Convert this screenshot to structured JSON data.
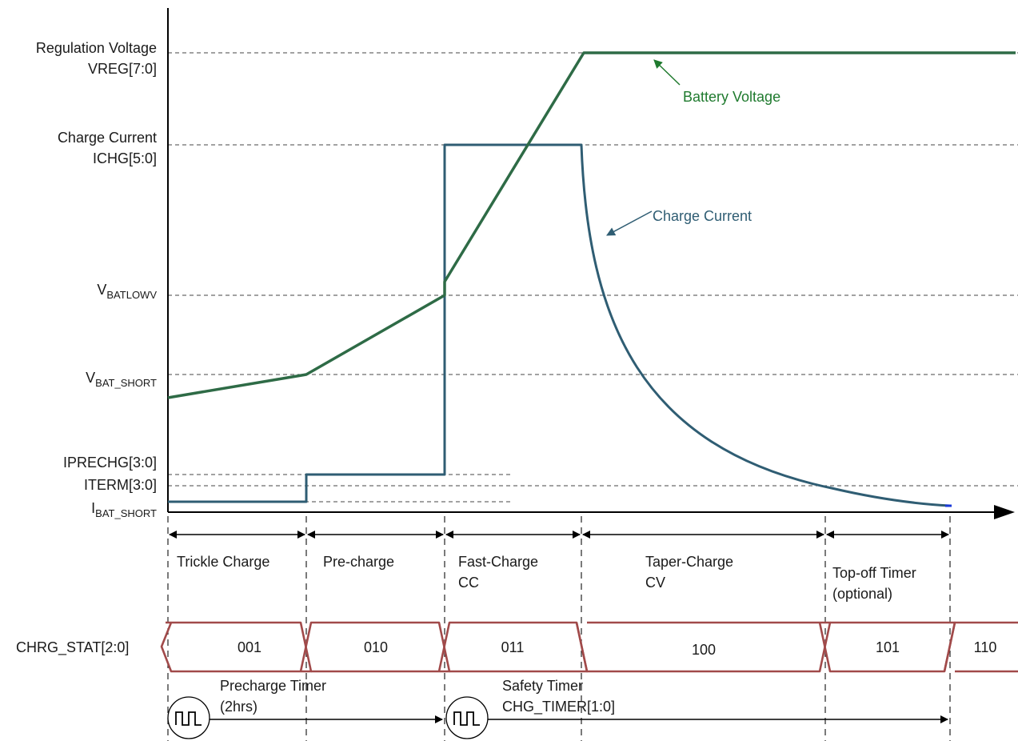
{
  "colors": {
    "voltage": "#2e6b46",
    "current": "#2f5d73",
    "voltage_annotation": "#1f7a2e",
    "current_annotation": "#2f5d73",
    "status_bus": "#a14a4a",
    "axis": "#000000"
  },
  "y_labels": {
    "vreg_line1": "Regulation Voltage",
    "vreg_line2": "VREG[7:0]",
    "ichg_line1": "Charge Current",
    "ichg_line2": "ICHG[5:0]",
    "vbatlowv_main": "V",
    "vbatlowv_sub": "BATLOWV",
    "vbatshort_main": "V",
    "vbatshort_sub": "BAT_SHORT",
    "iprechg": "IPRECHG[3:0]",
    "iterm": "ITERM[3:0]",
    "ibatshort_main": "I",
    "ibatshort_sub": "BAT_SHORT"
  },
  "annotations": {
    "battery_voltage": "Battery Voltage",
    "charge_current": "Charge Current"
  },
  "phases": [
    {
      "line1": "Trickle Charge",
      "line2": ""
    },
    {
      "line1": "Pre-charge",
      "line2": ""
    },
    {
      "line1": "Fast-Charge",
      "line2": "CC"
    },
    {
      "line1": "Taper-Charge",
      "line2": "CV"
    },
    {
      "line1": "Top-off Timer",
      "line2": "(optional)"
    }
  ],
  "status": {
    "label": "CHRG_STAT[2:0]",
    "codes": [
      "001",
      "010",
      "011",
      "100",
      "101",
      "110"
    ]
  },
  "timers": {
    "precharge_line1": "Precharge Timer",
    "precharge_line2": "(2hrs)",
    "safety_line1": "Safety Timer",
    "safety_line2": "CHG_TIMER[1:0]"
  }
}
